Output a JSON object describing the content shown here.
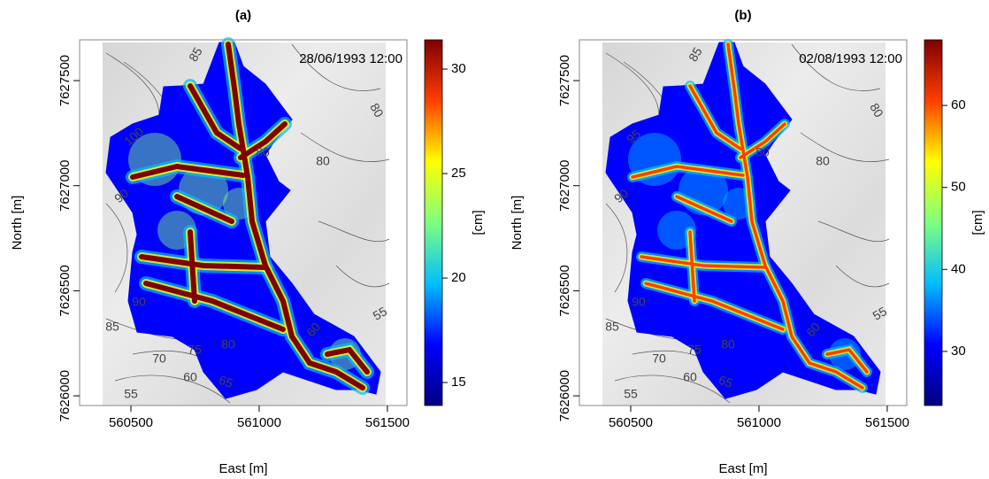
{
  "chart_data": [
    {
      "type": "heatmap",
      "title": "(a)",
      "annotation": "28/06/1993 12:00",
      "xlabel": "East [m]",
      "ylabel": "North [m]",
      "xlim": [
        560300,
        561576
      ],
      "ylim": [
        7625954,
        7627694
      ],
      "xticks": [
        560500,
        561000,
        561500
      ],
      "yticks": [
        7626000,
        7626500,
        7627000,
        7627500
      ],
      "colorbar": {
        "label": "[cm]",
        "lim": [
          13.9,
          31.4
        ],
        "ticks": [
          15,
          20,
          25,
          30
        ],
        "colors": [
          "#00007f",
          "#0000ff",
          "#00bfff",
          "#7fff7f",
          "#ffff00",
          "#ff3f00",
          "#7f0000"
        ]
      },
      "contour_labels": [
        "85",
        "80",
        "80",
        "80",
        "100",
        "90",
        "90",
        "85",
        "80",
        "75",
        "70",
        "60",
        "65",
        "55",
        "60",
        "55"
      ]
    },
    {
      "type": "heatmap",
      "title": "(b)",
      "annotation": "02/08/1993 12:00",
      "xlabel": "East [m]",
      "ylabel": "North [m]",
      "xlim": [
        560300,
        561576
      ],
      "ylim": [
        7625954,
        7627694
      ],
      "xticks": [
        560500,
        561000,
        561500
      ],
      "yticks": [
        7626000,
        7626500,
        7627000,
        7627500
      ],
      "colorbar": {
        "label": "[cm]",
        "lim": [
          23.4,
          68.0
        ],
        "ticks": [
          30,
          40,
          50,
          60
        ],
        "colors": [
          "#00007f",
          "#0000ff",
          "#00bfff",
          "#7fff7f",
          "#ffff00",
          "#ff3f00",
          "#7f0000"
        ]
      },
      "contour_labels": [
        "85",
        "80",
        "80",
        "80",
        "95",
        "90",
        "90",
        "85",
        "80",
        "75",
        "70",
        "60",
        "65",
        "55",
        "60",
        "55"
      ]
    }
  ]
}
